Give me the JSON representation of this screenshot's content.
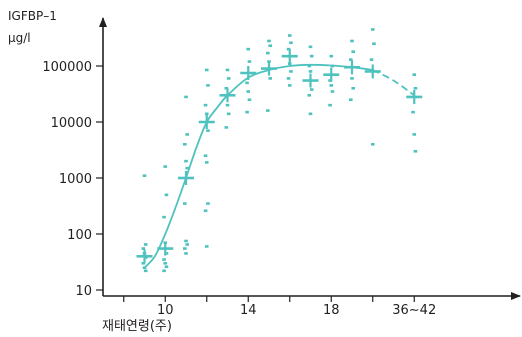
{
  "chart_data": {
    "type": "scatter",
    "ylabel_line1": "IGFBP–1",
    "ylabel_line2": "μg/l",
    "xlabel": "재태연령(주)",
    "y_scale": "log",
    "ylim": [
      10,
      300000
    ],
    "y_ticks": [
      {
        "value": 10,
        "label": "10"
      },
      {
        "value": 100,
        "label": "100"
      },
      {
        "value": 1000,
        "label": "1000"
      },
      {
        "value": 10000,
        "label": "10000"
      },
      {
        "value": 100000,
        "label": "100000"
      }
    ],
    "xlim": [
      7,
      24
    ],
    "x_ticks": [
      {
        "value": 10,
        "label": "10"
      },
      {
        "value": 14,
        "label": "14"
      },
      {
        "value": 18,
        "label": "18"
      },
      {
        "value": 22,
        "label": "36∼42"
      }
    ],
    "minor_x_ticks": [
      8,
      12,
      16,
      20
    ],
    "x_axis_note": "tick 36∼42 is plotted at position 22 on the week axis",
    "color": "#4ec2be",
    "axis_color": "#231f20",
    "medians": [
      {
        "x": 9,
        "y": 40
      },
      {
        "x": 10,
        "y": 55
      },
      {
        "x": 11,
        "y": 1000
      },
      {
        "x": 12,
        "y": 10000
      },
      {
        "x": 13,
        "y": 30000
      },
      {
        "x": 14,
        "y": 75000
      },
      {
        "x": 15,
        "y": 90000
      },
      {
        "x": 16,
        "y": 150000
      },
      {
        "x": 17,
        "y": 55000
      },
      {
        "x": 18,
        "y": 70000
      },
      {
        "x": 19,
        "y": 95000
      },
      {
        "x": 20,
        "y": 80000
      },
      {
        "x": 22,
        "y": 28000
      }
    ],
    "points": [
      {
        "x": 9,
        "y": 1100
      },
      {
        "x": 9,
        "y": 65
      },
      {
        "x": 9,
        "y": 55
      },
      {
        "x": 9,
        "y": 45
      },
      {
        "x": 9,
        "y": 38
      },
      {
        "x": 9,
        "y": 30
      },
      {
        "x": 9,
        "y": 25
      },
      {
        "x": 9,
        "y": 22
      },
      {
        "x": 10,
        "y": 1600
      },
      {
        "x": 10,
        "y": 500
      },
      {
        "x": 10,
        "y": 200
      },
      {
        "x": 10,
        "y": 70
      },
      {
        "x": 10,
        "y": 45
      },
      {
        "x": 10,
        "y": 35
      },
      {
        "x": 10,
        "y": 30
      },
      {
        "x": 10,
        "y": 26
      },
      {
        "x": 10,
        "y": 22
      },
      {
        "x": 11,
        "y": 28000
      },
      {
        "x": 11,
        "y": 6000
      },
      {
        "x": 11,
        "y": 4000
      },
      {
        "x": 11,
        "y": 2000
      },
      {
        "x": 11,
        "y": 1500
      },
      {
        "x": 11,
        "y": 350
      },
      {
        "x": 11,
        "y": 75
      },
      {
        "x": 11,
        "y": 65
      },
      {
        "x": 11,
        "y": 55
      },
      {
        "x": 11,
        "y": 45
      },
      {
        "x": 12,
        "y": 85000
      },
      {
        "x": 12,
        "y": 45000
      },
      {
        "x": 12,
        "y": 20000
      },
      {
        "x": 12,
        "y": 14000
      },
      {
        "x": 12,
        "y": 7000
      },
      {
        "x": 12,
        "y": 2500
      },
      {
        "x": 12,
        "y": 1900
      },
      {
        "x": 12,
        "y": 350
      },
      {
        "x": 12,
        "y": 260
      },
      {
        "x": 12,
        "y": 60
      },
      {
        "x": 13,
        "y": 85000
      },
      {
        "x": 13,
        "y": 60000
      },
      {
        "x": 13,
        "y": 40000
      },
      {
        "x": 13,
        "y": 20000
      },
      {
        "x": 13,
        "y": 14000
      },
      {
        "x": 13,
        "y": 8000
      },
      {
        "x": 14,
        "y": 200000
      },
      {
        "x": 14,
        "y": 120000
      },
      {
        "x": 14,
        "y": 50000
      },
      {
        "x": 14,
        "y": 35000
      },
      {
        "x": 14,
        "y": 25000
      },
      {
        "x": 14,
        "y": 15000
      },
      {
        "x": 15,
        "y": 280000
      },
      {
        "x": 15,
        "y": 230000
      },
      {
        "x": 15,
        "y": 170000
      },
      {
        "x": 15,
        "y": 120000
      },
      {
        "x": 15,
        "y": 60000
      },
      {
        "x": 15,
        "y": 16000
      },
      {
        "x": 16,
        "y": 350000
      },
      {
        "x": 16,
        "y": 260000
      },
      {
        "x": 16,
        "y": 200000
      },
      {
        "x": 16,
        "y": 110000
      },
      {
        "x": 16,
        "y": 80000
      },
      {
        "x": 16,
        "y": 60000
      },
      {
        "x": 16,
        "y": 45000
      },
      {
        "x": 17,
        "y": 220000
      },
      {
        "x": 17,
        "y": 150000
      },
      {
        "x": 17,
        "y": 100000
      },
      {
        "x": 17,
        "y": 80000
      },
      {
        "x": 17,
        "y": 38000
      },
      {
        "x": 17,
        "y": 30000
      },
      {
        "x": 17,
        "y": 14000
      },
      {
        "x": 18,
        "y": 150000
      },
      {
        "x": 18,
        "y": 100000
      },
      {
        "x": 18,
        "y": 55000
      },
      {
        "x": 18,
        "y": 45000
      },
      {
        "x": 18,
        "y": 35000
      },
      {
        "x": 18,
        "y": 20000
      },
      {
        "x": 19,
        "y": 280000
      },
      {
        "x": 19,
        "y": 180000
      },
      {
        "x": 19,
        "y": 130000
      },
      {
        "x": 19,
        "y": 60000
      },
      {
        "x": 19,
        "y": 40000
      },
      {
        "x": 19,
        "y": 25000
      },
      {
        "x": 20,
        "y": 450000
      },
      {
        "x": 20,
        "y": 250000
      },
      {
        "x": 20,
        "y": 130000
      },
      {
        "x": 20,
        "y": 4000
      },
      {
        "x": 22,
        "y": 70000
      },
      {
        "x": 22,
        "y": 40000
      },
      {
        "x": 22,
        "y": 15000
      },
      {
        "x": 22,
        "y": 6000
      },
      {
        "x": 22,
        "y": 3000
      }
    ],
    "fit_curve": [
      {
        "x": 9,
        "y": 25
      },
      {
        "x": 9.5,
        "y": 40
      },
      {
        "x": 10,
        "y": 100
      },
      {
        "x": 10.5,
        "y": 300
      },
      {
        "x": 11,
        "y": 1000
      },
      {
        "x": 11.5,
        "y": 3500
      },
      {
        "x": 12,
        "y": 10000
      },
      {
        "x": 12.5,
        "y": 18000
      },
      {
        "x": 13,
        "y": 30000
      },
      {
        "x": 14,
        "y": 62000
      },
      {
        "x": 15,
        "y": 85000
      },
      {
        "x": 16,
        "y": 100000
      },
      {
        "x": 17,
        "y": 105000
      },
      {
        "x": 18,
        "y": 102000
      },
      {
        "x": 19,
        "y": 95000
      },
      {
        "x": 20,
        "y": 85000
      }
    ],
    "fit_dashed": [
      {
        "x": 20,
        "y": 85000
      },
      {
        "x": 21,
        "y": 55000
      },
      {
        "x": 22,
        "y": 30000
      }
    ]
  }
}
